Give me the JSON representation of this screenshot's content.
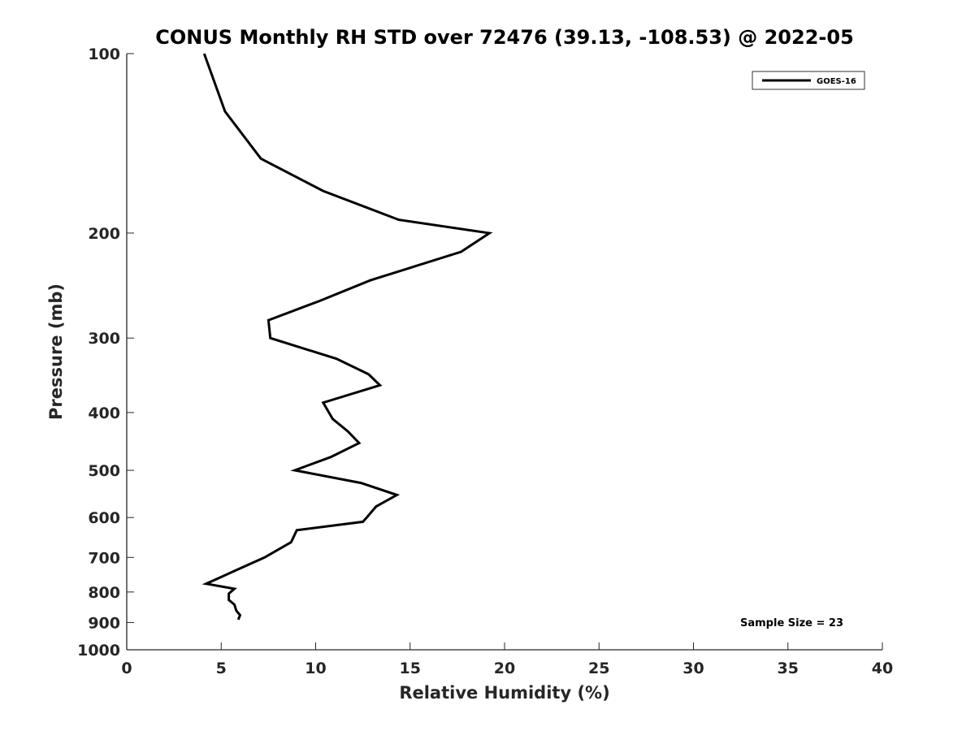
{
  "chart_data": {
    "type": "line",
    "title": "CONUS Monthly RH STD over 72476 (39.13, -108.53) @ 2022-05",
    "xlabel": "Relative Humidity (%)",
    "ylabel": "Pressure (mb)",
    "xlim": [
      0,
      40
    ],
    "ylim": [
      100,
      1000
    ],
    "y_scale": "log",
    "y_reversed": true,
    "x_ticks": [
      0,
      5,
      10,
      15,
      20,
      25,
      30,
      35,
      40
    ],
    "y_ticks": [
      100,
      200,
      300,
      400,
      500,
      600,
      700,
      800,
      900,
      1000
    ],
    "grid": false,
    "legend_position": "top-right",
    "line_color": "#000000",
    "series": [
      {
        "name": "GOES-16",
        "points": [
          [
            4.1,
            100
          ],
          [
            5.2,
            125
          ],
          [
            7.1,
            150
          ],
          [
            10.4,
            170
          ],
          [
            14.4,
            190
          ],
          [
            19.2,
            200
          ],
          [
            17.7,
            215
          ],
          [
            12.9,
            240
          ],
          [
            10.2,
            260
          ],
          [
            7.5,
            280
          ],
          [
            7.6,
            300
          ],
          [
            11.1,
            325
          ],
          [
            12.8,
            345
          ],
          [
            13.4,
            360
          ],
          [
            10.4,
            385
          ],
          [
            10.9,
            410
          ],
          [
            11.7,
            430
          ],
          [
            12.3,
            450
          ],
          [
            10.8,
            475
          ],
          [
            8.9,
            500
          ],
          [
            12.4,
            525
          ],
          [
            14.3,
            550
          ],
          [
            13.2,
            575
          ],
          [
            12.7,
            600
          ],
          [
            12.5,
            610
          ],
          [
            9.0,
            630
          ],
          [
            8.7,
            660
          ],
          [
            7.3,
            700
          ],
          [
            5.6,
            740
          ],
          [
            5.0,
            755
          ],
          [
            4.2,
            775
          ],
          [
            5.7,
            790
          ],
          [
            5.4,
            805
          ],
          [
            5.4,
            825
          ],
          [
            5.7,
            840
          ],
          [
            5.8,
            860
          ],
          [
            6.0,
            875
          ],
          [
            5.9,
            890
          ]
        ]
      }
    ],
    "annotation": "Sample Size = 23"
  }
}
